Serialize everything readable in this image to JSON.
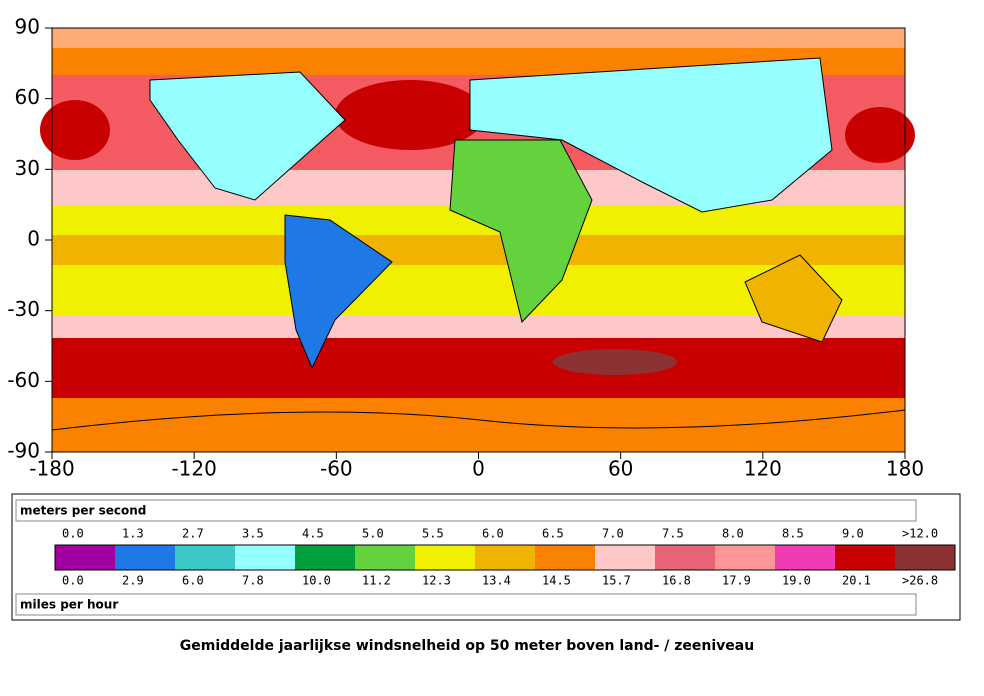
{
  "map": {
    "xticks": [
      -180,
      -120,
      -60,
      0,
      60,
      120,
      180
    ],
    "yticks": [
      90,
      60,
      30,
      0,
      -30,
      -60,
      -90
    ]
  },
  "legend": {
    "top_title": "meters per second",
    "top_labels": [
      "0.0",
      "1.3",
      "2.7",
      "3.5",
      "4.5",
      "5.0",
      "5.5",
      "6.0",
      "6.5",
      "7.0",
      "7.5",
      "8.0",
      "8.5",
      "9.0",
      ">12.0"
    ],
    "colors": [
      "#a0009f",
      "#1e78e6",
      "#3cc8c8",
      "#96ffff",
      "#00a03c",
      "#64d23c",
      "#f0f000",
      "#f0b400",
      "#fa8200",
      "#ffc8c8",
      "#e66478",
      "#ff9696",
      "#f03cb4",
      "#c80000",
      "#8c3232"
    ],
    "bottom_labels": [
      "0.0",
      "2.9",
      "6.0",
      "7.8",
      "10.0",
      "11.2",
      "12.3",
      "13.4",
      "14.5",
      "15.7",
      "16.8",
      "17.9",
      "19.0",
      "20.1",
      ">26.8"
    ],
    "bottom_title": "miles per hour"
  },
  "caption": "Gemiddelde jaarlijkse windsnelheid op 50 meter boven land- / zeeniveau"
}
